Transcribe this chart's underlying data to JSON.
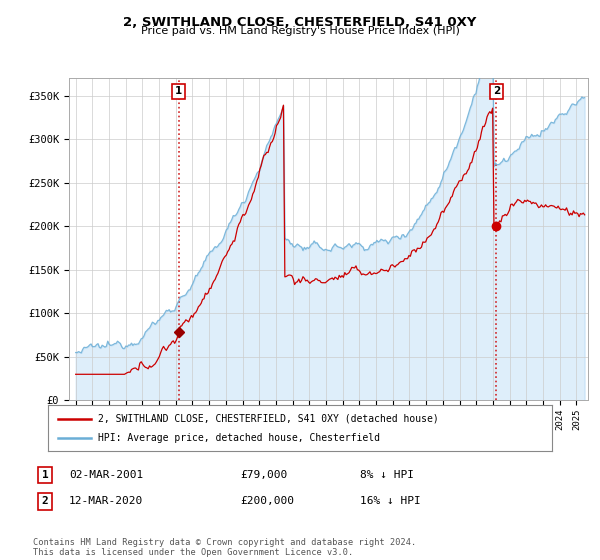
{
  "title": "2, SWITHLAND CLOSE, CHESTERFIELD, S41 0XY",
  "subtitle": "Price paid vs. HM Land Registry's House Price Index (HPI)",
  "ylim": [
    0,
    370000
  ],
  "yticks": [
    0,
    50000,
    100000,
    150000,
    200000,
    250000,
    300000,
    350000
  ],
  "ytick_labels": [
    "£0",
    "£50K",
    "£100K",
    "£150K",
    "£200K",
    "£250K",
    "£300K",
    "£350K"
  ],
  "hpi_color": "#6baed6",
  "hpi_fill_color": "#ddeeff",
  "price_color": "#cc0000",
  "dashed_color": "#cc0000",
  "point1": {
    "date_label": "02-MAR-2001",
    "price": 79000,
    "pct": "8%",
    "x": 2001.17
  },
  "point2": {
    "date_label": "12-MAR-2020",
    "price": 200000,
    "pct": "16%",
    "x": 2020.21
  },
  "legend_line1": "2, SWITHLAND CLOSE, CHESTERFIELD, S41 0XY (detached house)",
  "legend_line2": "HPI: Average price, detached house, Chesterfield",
  "table_row1": [
    "1",
    "02-MAR-2001",
    "£79,000",
    "8% ↓ HPI"
  ],
  "table_row2": [
    "2",
    "12-MAR-2020",
    "£200,000",
    "16% ↓ HPI"
  ],
  "footnote": "Contains HM Land Registry data © Crown copyright and database right 2024.\nThis data is licensed under the Open Government Licence v3.0.",
  "background_color": "#ffffff",
  "shade_color": "#ddeef8"
}
